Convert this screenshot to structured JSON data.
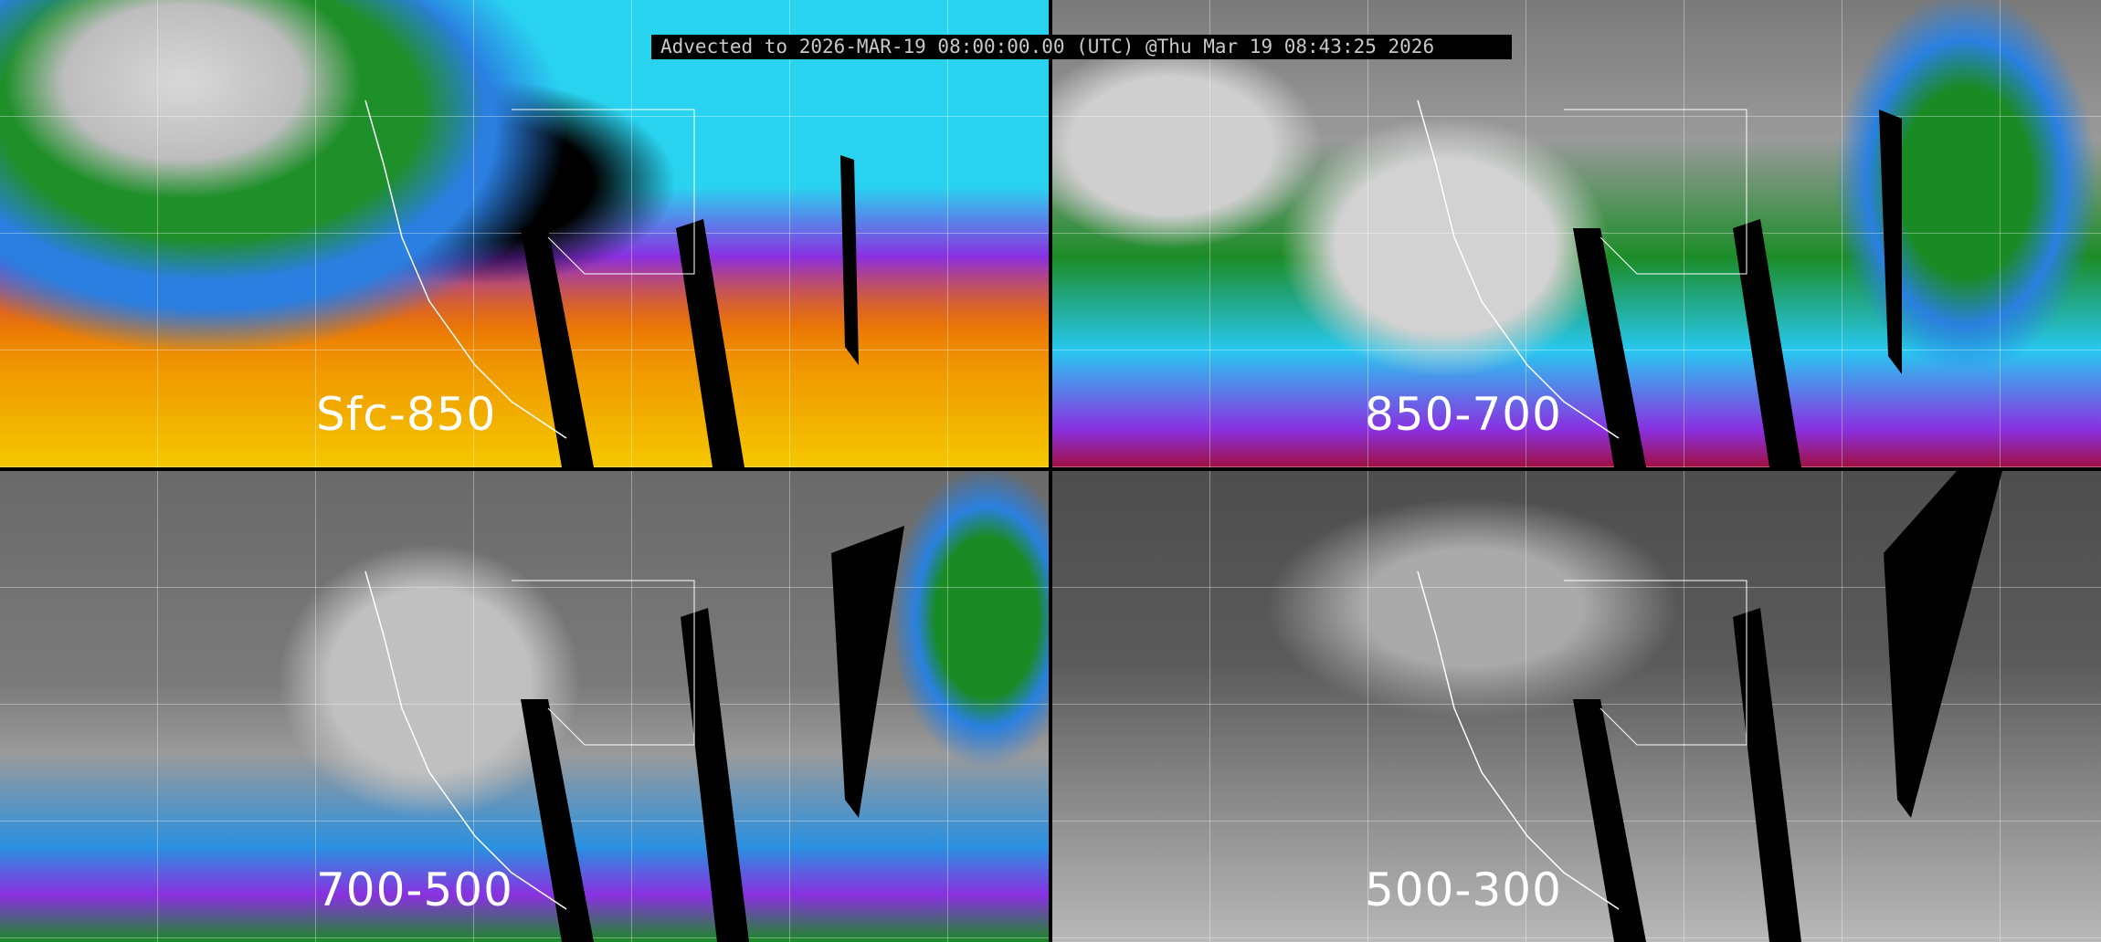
{
  "header": {
    "title": "Advected to 2026-MAR-19 08:00:00.00 (UTC) @Thu Mar 19 08:43:25 2026"
  },
  "panels": [
    {
      "label": "Sfc-850",
      "palette": [
        "#f5c800",
        "#f07000",
        "#e04010",
        "#8a2fe0",
        "#29d3f0",
        "#2a7fe0",
        "#1f8f2a",
        "#d8d8d8"
      ]
    },
    {
      "label": "850-700",
      "palette": [
        "#a01040",
        "#8a30e0",
        "#28c8f0",
        "#2a80e0",
        "#1c8c28",
        "#9a9a9a"
      ]
    },
    {
      "label": "700-500",
      "palette": [
        "#8a30e0",
        "#2a90e0",
        "#1a8a25",
        "#9a9a9a",
        "#6a6a6a"
      ]
    },
    {
      "label": "500-300",
      "palette": [
        "#1a8a25",
        "#b8b8b8",
        "#5a5a5a",
        "#4e4e4e"
      ]
    }
  ]
}
